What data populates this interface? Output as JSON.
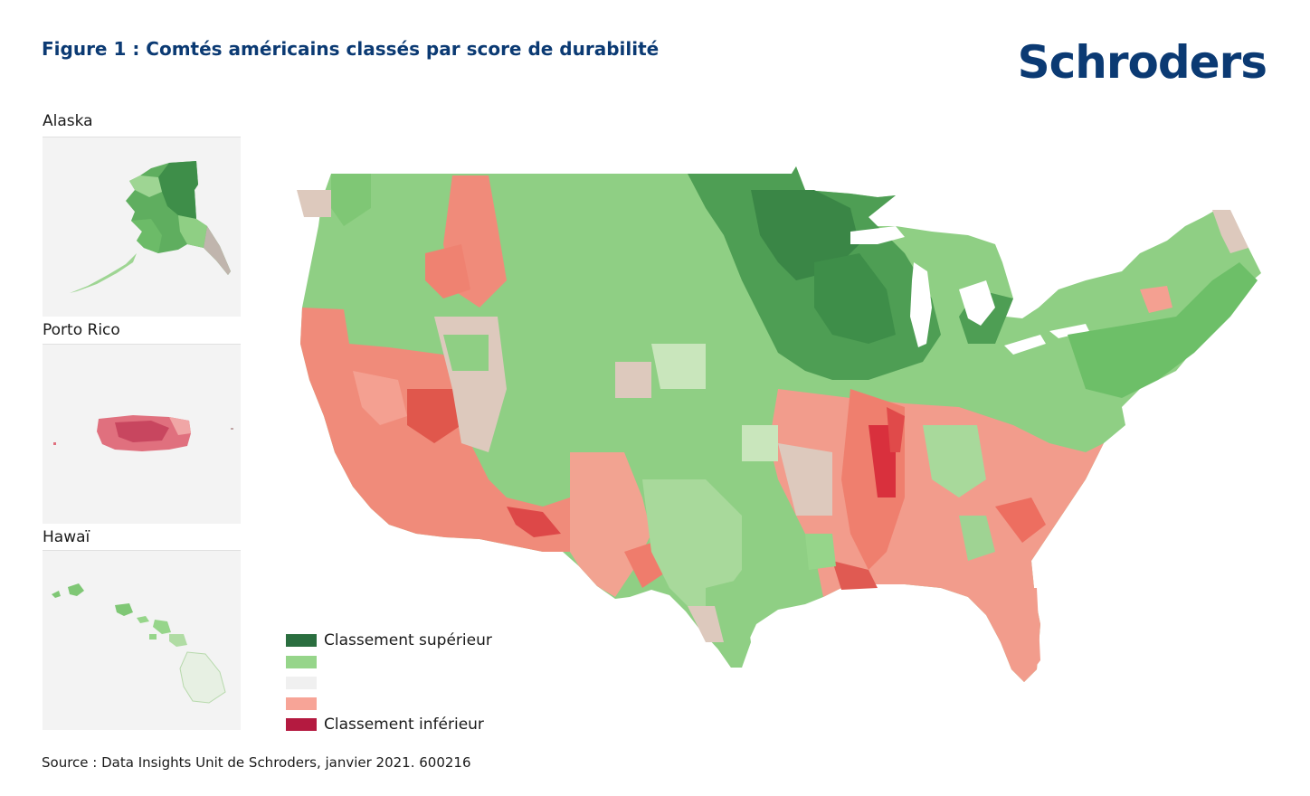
{
  "title": "Figure 1 : Comtés américains classés par score de durabilité",
  "logo": "Schroders",
  "insets": {
    "alaska": "Alaska",
    "puerto_rico": "Porto Rico",
    "hawaii": "Hawaï"
  },
  "legend": [
    {
      "label": "Classement supérieur",
      "color": "#2a6e3f"
    },
    {
      "label": "",
      "color": "#96d58a"
    },
    {
      "label": "",
      "color": "#f0f0f0"
    },
    {
      "label": "",
      "color": "#f7a497"
    },
    {
      "label": "Classement inférieur",
      "color": "#b41a40"
    }
  ],
  "source": "Source : Data Insights Unit de Schroders, janvier 2021. 600216",
  "colors": {
    "brand": "#0b3a73",
    "top": "#2a6e3f",
    "high": "#7fc775",
    "neutral": "#ddc9bd",
    "low": "#f08b7a",
    "bottom": "#d9303d"
  }
}
